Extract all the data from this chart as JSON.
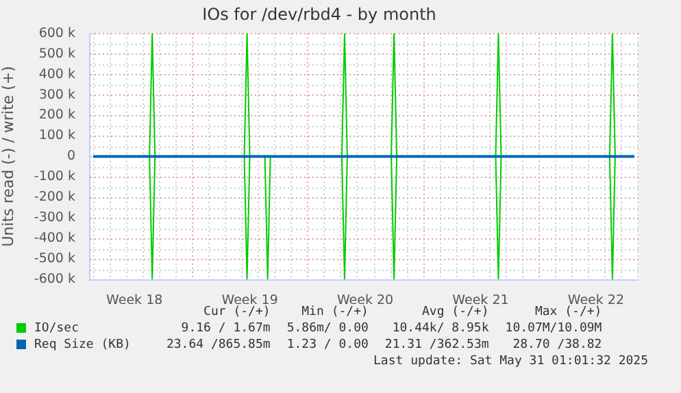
{
  "chart_data": {
    "type": "line",
    "title": "IOs for /dev/rbd4 - by month",
    "ylabel": "Units read (-) / write (+)",
    "xlim": [
      "2025-04-28T20:00",
      "2025-06-01T02:00"
    ],
    "xticks": [
      {
        "value": "2025-05-01T12:00",
        "label": "Week 18"
      },
      {
        "value": "2025-05-08T12:00",
        "label": "Week 19"
      },
      {
        "value": "2025-05-15T12:00",
        "label": "Week 20"
      },
      {
        "value": "2025-05-22T12:00",
        "label": "Week 21"
      },
      {
        "value": "2025-05-29T12:00",
        "label": "Week 22"
      }
    ],
    "ylim": [
      -600000,
      600000
    ],
    "yticks": [
      {
        "value": 600000,
        "label": "600 k"
      },
      {
        "value": 500000,
        "label": "500 k"
      },
      {
        "value": 400000,
        "label": "400 k"
      },
      {
        "value": 300000,
        "label": "300 k"
      },
      {
        "value": 200000,
        "label": "200 k"
      },
      {
        "value": 100000,
        "label": "100 k"
      },
      0,
      {
        "value": -100000,
        "label": "-100 k"
      },
      {
        "value": -200000,
        "label": "-200 k"
      },
      {
        "value": -300000,
        "label": "-300 k"
      },
      {
        "value": -400000,
        "label": "-400 k"
      },
      {
        "value": -500000,
        "label": "-500 k"
      },
      {
        "value": -600000,
        "label": "-600 k"
      }
    ],
    "grid": true,
    "legend": "bottom",
    "series": [
      {
        "name": "IO/sec",
        "color": "#00cc00",
        "x": [
          "2025-04-29T00:00",
          "2025-05-02T10:00",
          "2025-05-02T14:00",
          "2025-05-02T18:00",
          "2025-05-08T04:00",
          "2025-05-08T08:00",
          "2025-05-08T12:00",
          "2025-05-14T02:00",
          "2025-05-14T06:00",
          "2025-05-14T10:00",
          "2025-05-17T02:00",
          "2025-05-17T06:00",
          "2025-05-17T10:00",
          "2025-05-23T10:00",
          "2025-05-23T14:00",
          "2025-05-23T18:00",
          "2025-05-30T08:00",
          "2025-05-30T12:00",
          "2025-05-30T16:00",
          "2025-05-31T20:00"
        ],
        "values": [
          0,
          0,
          600000,
          0,
          0,
          600000,
          0,
          0,
          600000,
          0,
          0,
          600000,
          0,
          0,
          600000,
          0,
          0,
          600000,
          0,
          0
        ]
      },
      {
        "color": "#00cc00",
        "x": [
          "2025-04-29T00:00",
          "2025-05-02T10:00",
          "2025-05-02T14:00",
          "2025-05-02T18:00",
          "2025-05-08T04:00",
          "2025-05-08T08:00",
          "2025-05-08T12:00",
          "2025-05-09T10:00",
          "2025-05-09T14:00",
          "2025-05-09T18:00",
          "2025-05-14T02:00",
          "2025-05-14T06:00",
          "2025-05-14T10:00",
          "2025-05-17T02:00",
          "2025-05-17T06:00",
          "2025-05-17T10:00",
          "2025-05-23T10:00",
          "2025-05-23T14:00",
          "2025-05-23T18:00",
          "2025-05-30T08:00",
          "2025-05-30T12:00",
          "2025-05-30T16:00",
          "2025-05-31T20:00"
        ],
        "values": [
          0,
          0,
          -600000,
          0,
          0,
          -600000,
          0,
          0,
          -600000,
          0,
          0,
          -600000,
          0,
          0,
          -600000,
          0,
          0,
          -600000,
          0,
          0,
          -600000,
          0,
          0
        ]
      },
      {
        "name": "Req Size (KB)",
        "color": "#0066b3",
        "x": [
          "2025-04-29T00:00",
          "2025-05-31T20:00"
        ],
        "values": [
          0,
          0
        ]
      }
    ],
    "annotations": [
      "Cur (-/+)",
      "Min (-/+)",
      "Avg (-/+)",
      "Max (-/+)",
      "9.16 / 1.67m",
      "5.86m/ 0.00",
      "10.44k/ 8.95k",
      "10.07M/10.09M",
      "23.64 /865.85m",
      "1.23 / 0.00",
      "21.31 /362.53m",
      "28.70 /38.82",
      "Last update: Sat May 31 01:01:32 2025"
    ]
  }
}
